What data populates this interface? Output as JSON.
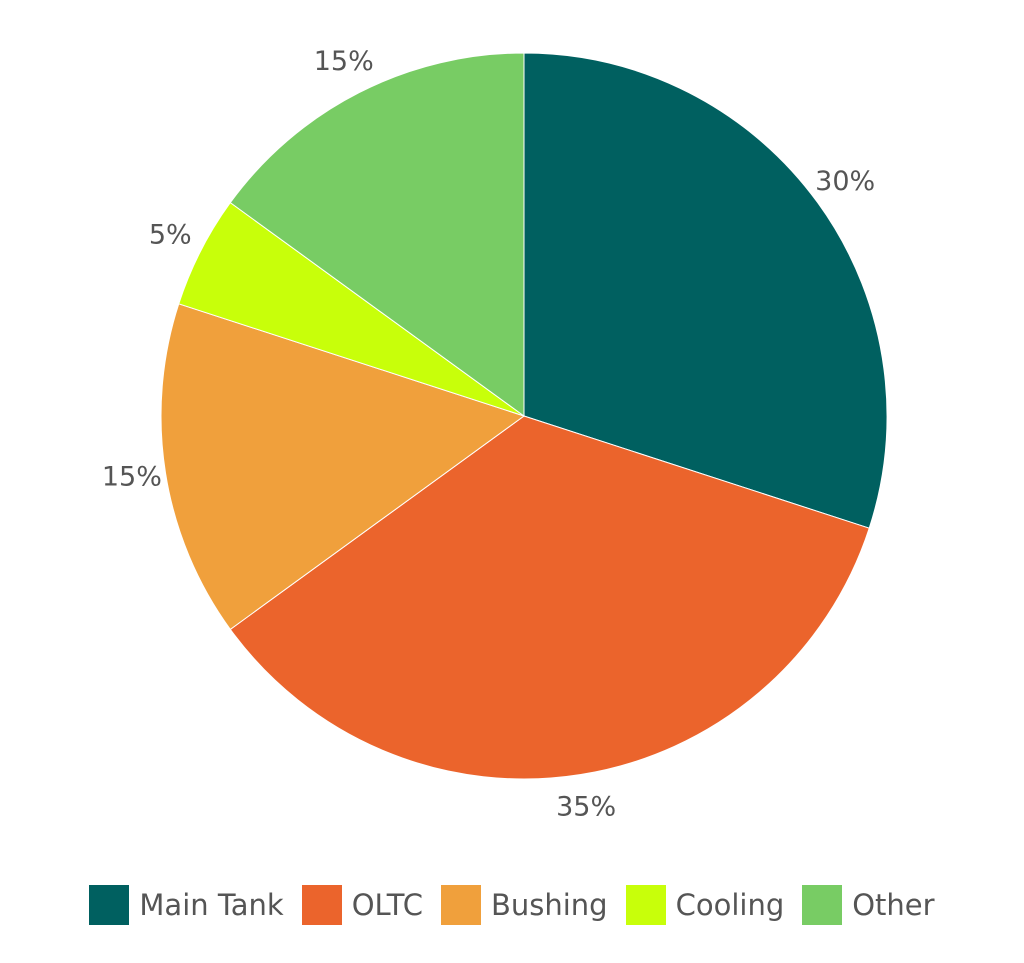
{
  "chart_data": {
    "type": "pie",
    "title": "",
    "legend": "bottom",
    "start_angle": "top",
    "direction": "clockwise",
    "slices": [
      {
        "label": "Main Tank",
        "value": 30,
        "display": "30%",
        "color": "#006060"
      },
      {
        "label": "OLTC",
        "value": 35,
        "display": "35%",
        "color": "#eb642c"
      },
      {
        "label": "Bushing",
        "value": 15,
        "display": "15%",
        "color": "#f0a03c"
      },
      {
        "label": "Cooling",
        "value": 5,
        "display": "5%",
        "color": "#c8ff0a"
      },
      {
        "label": "Other",
        "value": 15,
        "display": "15%",
        "color": "#78cc64"
      }
    ]
  }
}
